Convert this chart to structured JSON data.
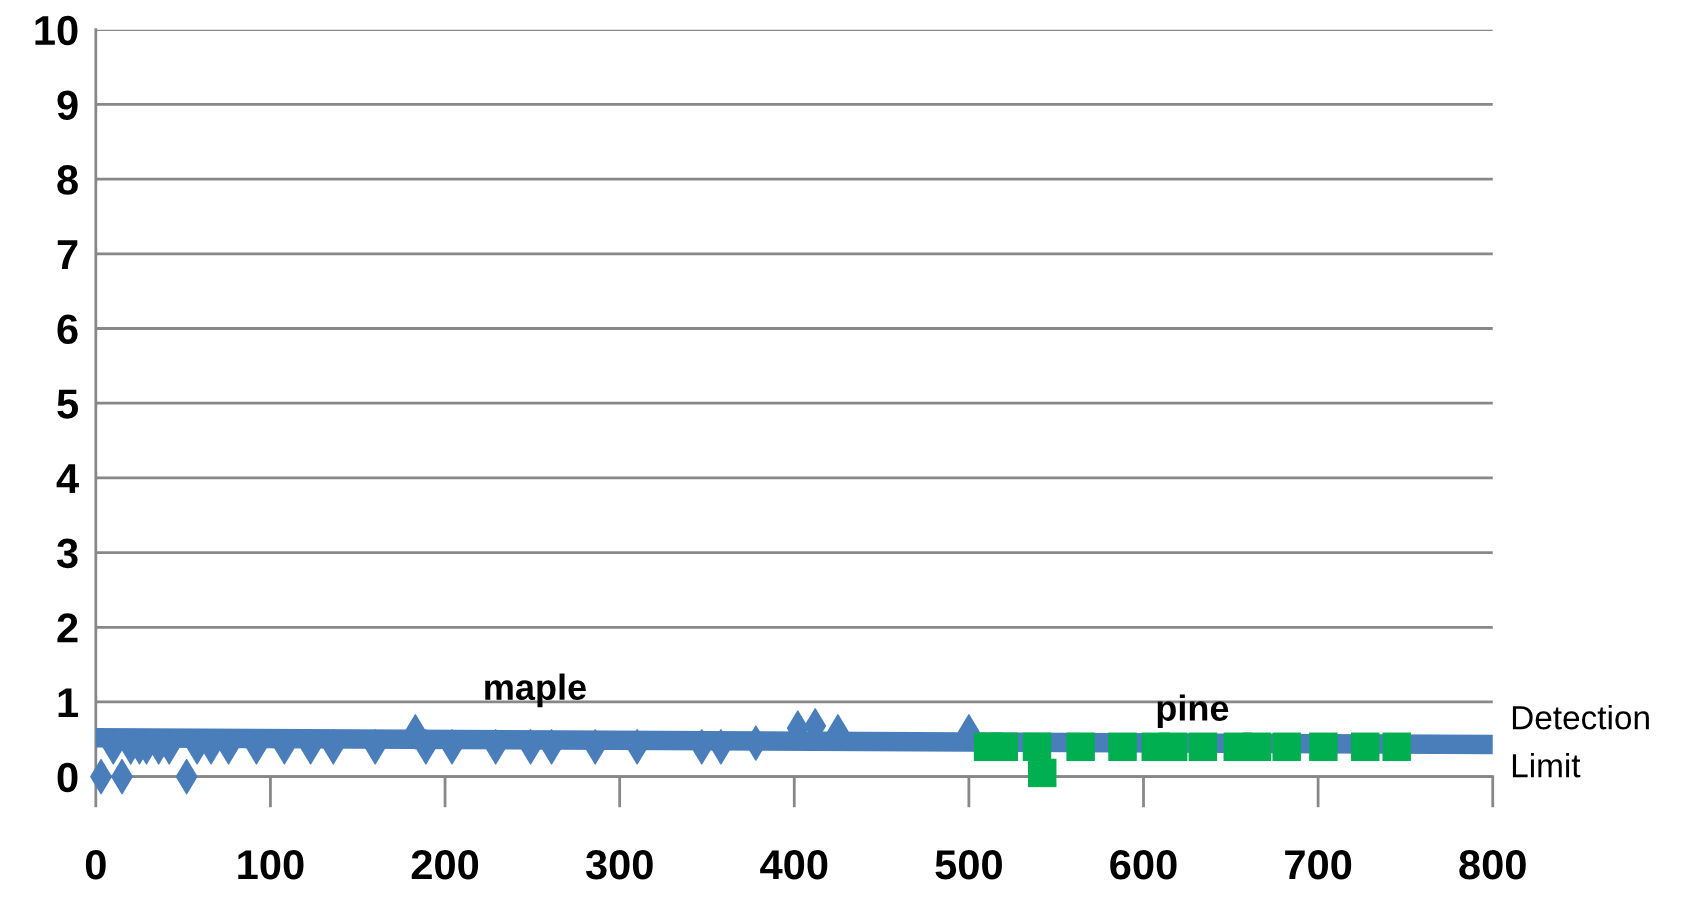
{
  "chart_data": {
    "type": "scatter",
    "series": [
      {
        "name": "maple",
        "marker": "diamond",
        "color": "#4a7ebb",
        "x": [
          3,
          15,
          52,
          10,
          20,
          25,
          29,
          36,
          42,
          58,
          66,
          76,
          92,
          108,
          123,
          136,
          160,
          183,
          189,
          204,
          229,
          249,
          261,
          286,
          310,
          347,
          358,
          378,
          402,
          412,
          425,
          500
        ],
        "values": [
          0,
          0,
          0,
          0.4,
          0.4,
          0.4,
          0.4,
          0.4,
          0.4,
          0.4,
          0.4,
          0.4,
          0.4,
          0.4,
          0.4,
          0.4,
          0.4,
          0.6,
          0.4,
          0.4,
          0.4,
          0.4,
          0.4,
          0.4,
          0.4,
          0.4,
          0.4,
          0.45,
          0.65,
          0.68,
          0.6,
          0.6
        ]
      },
      {
        "name": "pine",
        "marker": "square",
        "color": "#00b050",
        "x": [
          511,
          520,
          539,
          542,
          564,
          588,
          607,
          617,
          634,
          654,
          665,
          682,
          703,
          727,
          745
        ],
        "values": [
          0.4,
          0.4,
          0.4,
          0.05,
          0.4,
          0.4,
          0.4,
          0.4,
          0.4,
          0.4,
          0.4,
          0.4,
          0.4,
          0.4,
          0.4
        ]
      },
      {
        "name": "Detection Limit",
        "type": "line",
        "marker": "none",
        "color": "#4a7ebb",
        "x": [
          0,
          800
        ],
        "values": [
          0.52,
          0.43
        ]
      }
    ],
    "xlim": [
      0,
      800
    ],
    "xticks": [
      0,
      100,
      200,
      300,
      400,
      500,
      600,
      700,
      800
    ],
    "ylim": [
      0,
      10
    ],
    "yticks": [
      0,
      1,
      2,
      3,
      4,
      5,
      6,
      7,
      8,
      9,
      10
    ],
    "grid": "y",
    "legend": false
  }
}
